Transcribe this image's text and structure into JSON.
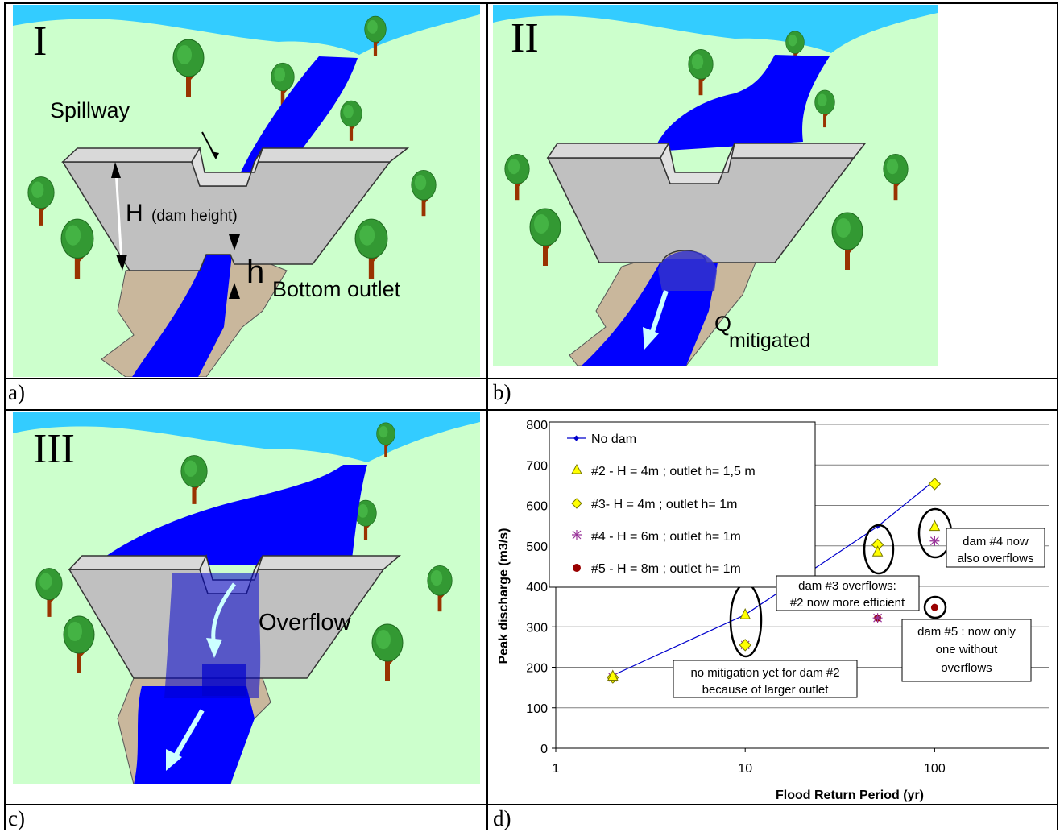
{
  "panels": {
    "a": {
      "roman": "I",
      "caption": "a)",
      "labels": {
        "spillway": "Spillway",
        "dam_height_symbol": "H",
        "dam_height_note": "(dam height)",
        "outlet_symbol": "h",
        "bottom_outlet": "Bottom outlet"
      }
    },
    "b": {
      "roman": "II",
      "caption": "b)",
      "labels": {
        "q_symbol": "Q",
        "q_subscript": "mitigated"
      }
    },
    "c": {
      "roman": "III",
      "caption": "c)",
      "labels": {
        "overflow": "Overflow"
      }
    },
    "d": {
      "caption": "d)"
    }
  },
  "colors": {
    "grass": "#ccffcc",
    "sky": "#33ccff",
    "water": "#0000ff",
    "dam": "#c0c0c0",
    "soil": "#c9b79c",
    "arrow": "#ccffff",
    "tree_leaf": "#339933",
    "tree_trunk": "#993300",
    "triangle_fill": "#ffff00",
    "diamond_fill": "#ffff00",
    "no_dam_line": "#0000cc",
    "dam4_marker": "#993399",
    "dam5_marker": "#990000"
  },
  "chart_data": {
    "type": "scatter",
    "xscale": "log",
    "xlim": [
      1,
      400
    ],
    "ylim": [
      0,
      800
    ],
    "x_ticks": [
      "1",
      "10",
      "100"
    ],
    "y_ticks": [
      "0",
      "100",
      "200",
      "300",
      "400",
      "500",
      "600",
      "700",
      "800"
    ],
    "xlabel": "Flood Return Period (yr)",
    "ylabel": "Peak discharge (m3/s)",
    "grid": "horizontal",
    "legend_position": "top-left",
    "series": [
      {
        "name": "No dam",
        "marker": "line-dot",
        "points": [
          [
            2,
            180
          ],
          [
            10,
            330
          ],
          [
            50,
            548
          ],
          [
            100,
            662
          ]
        ]
      },
      {
        "name": "#2 - H = 4m ; outlet h= 1,5 m",
        "marker": "triangle",
        "points": [
          [
            2,
            178
          ],
          [
            10,
            330
          ],
          [
            50,
            485
          ],
          [
            100,
            548
          ]
        ]
      },
      {
        "name": "#3- H = 4m ; outlet h= 1m",
        "marker": "diamond",
        "points": [
          [
            2,
            175
          ],
          [
            10,
            255
          ],
          [
            50,
            503
          ],
          [
            100,
            653
          ]
        ]
      },
      {
        "name": "#4 - H = 6m ; outlet h= 1m",
        "marker": "star",
        "points": [
          [
            2,
            175
          ],
          [
            10,
            255
          ],
          [
            50,
            322
          ],
          [
            100,
            512
          ]
        ]
      },
      {
        "name": "#5 - H = 8m ; outlet h= 1m",
        "marker": "circle",
        "points": [
          [
            2,
            175
          ],
          [
            10,
            255
          ],
          [
            50,
            322
          ],
          [
            100,
            348
          ]
        ]
      }
    ],
    "annotations": [
      {
        "text": [
          "no mitigation yet for dam #2",
          "because of larger outlet"
        ]
      },
      {
        "text": [
          "dam #3 overflows:",
          "#2 now more efficient"
        ]
      },
      {
        "text": [
          "dam #4 now",
          "also overflows"
        ]
      },
      {
        "text": [
          "dam #5 : now only",
          "one without",
          "overflows"
        ]
      }
    ]
  }
}
